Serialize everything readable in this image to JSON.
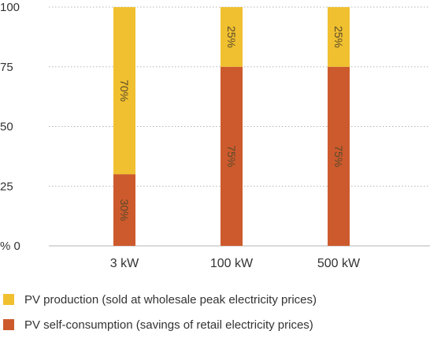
{
  "chart_data": {
    "type": "bar",
    "stacked": true,
    "categories": [
      "3 kW",
      "100 kW",
      "500 kW"
    ],
    "series": [
      {
        "name": "PV self-consumption (savings of retail electricity prices)",
        "values": [
          30,
          75,
          75
        ],
        "labels": [
          "30%",
          "75%",
          "75%"
        ],
        "color": "#cd5a2d"
      },
      {
        "name": "PV production (sold at wholesale peak electricity prices)",
        "values": [
          70,
          25,
          25
        ],
        "labels": [
          "70%",
          "25%",
          "25%"
        ],
        "color": "#f0c030"
      }
    ],
    "ylim": [
      0,
      100
    ],
    "yticks": [
      {
        "value": 0,
        "label": "% 0"
      },
      {
        "value": 25,
        "label": "25"
      },
      {
        "value": 50,
        "label": "50"
      },
      {
        "value": 75,
        "label": "75"
      },
      {
        "value": 100,
        "label": "100"
      }
    ],
    "grid": true,
    "legend_position": "bottom-left",
    "title": "",
    "xlabel": "",
    "ylabel": ""
  },
  "legend": [
    {
      "label": "PV production (sold at wholesale peak electricity prices)",
      "color": "#f0c030"
    },
    {
      "label": "PV self-consumption (savings of retail electricity prices)",
      "color": "#cd5a2d"
    }
  ]
}
